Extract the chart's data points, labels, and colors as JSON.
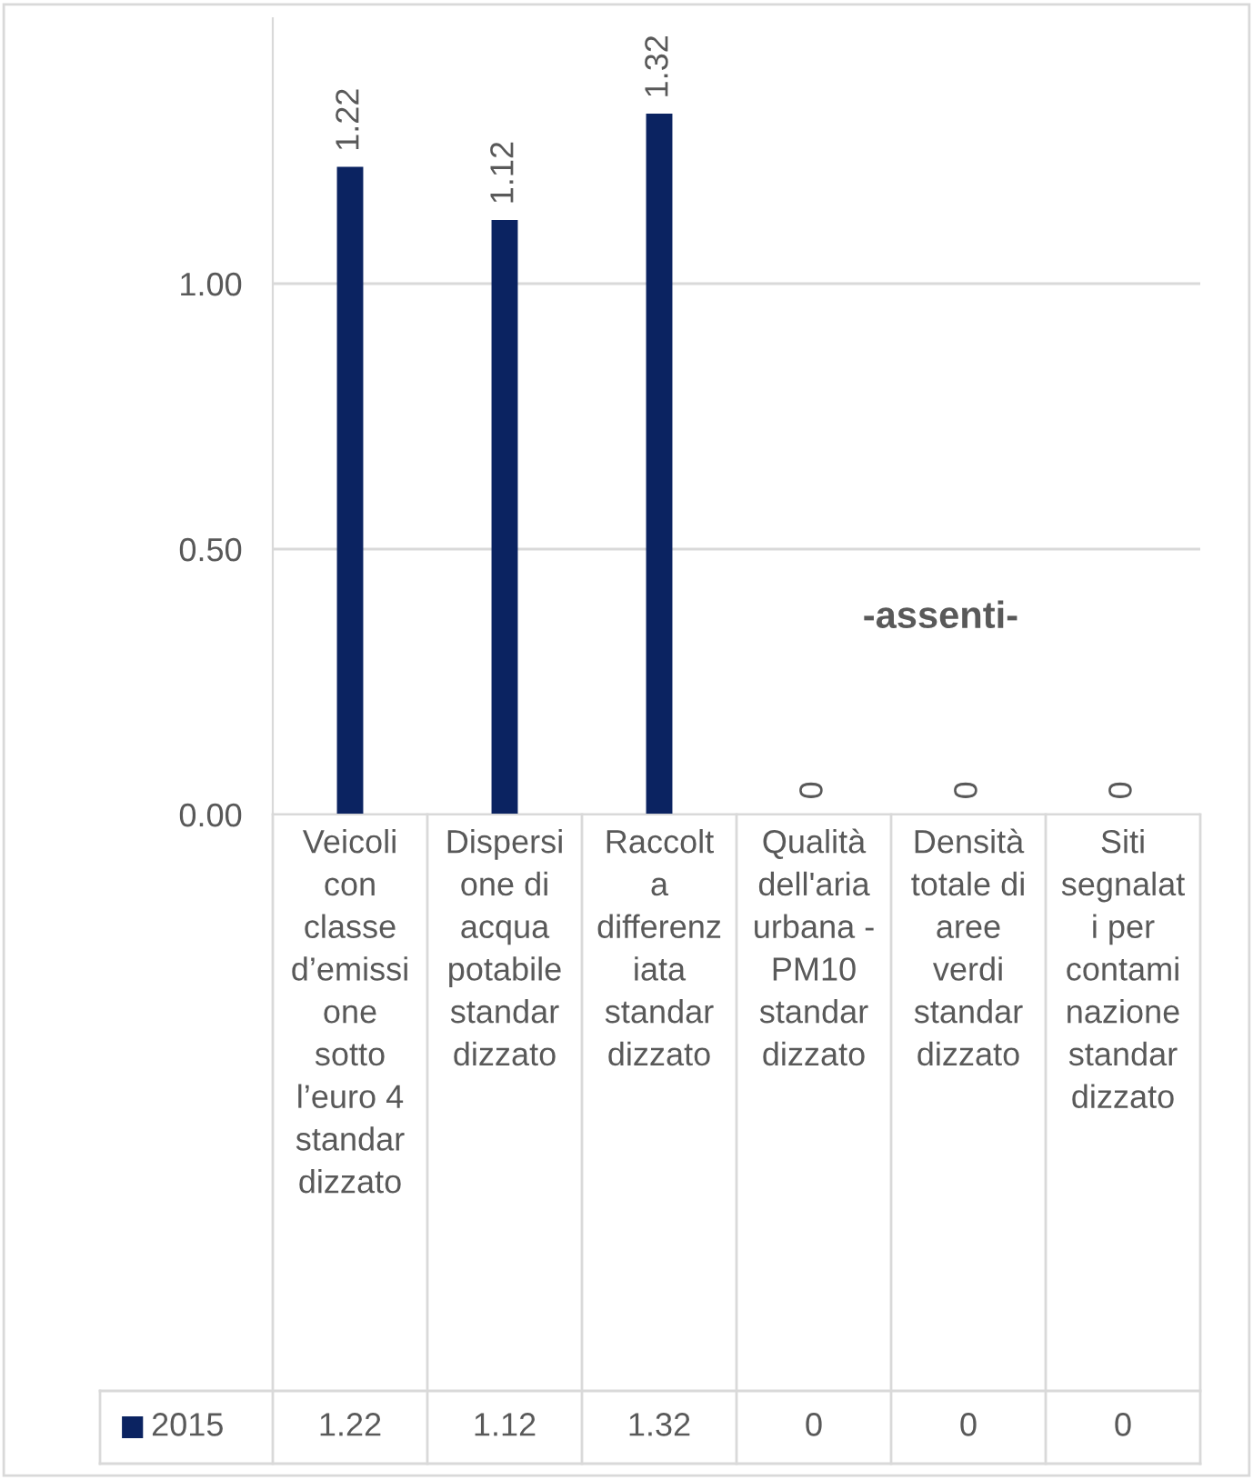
{
  "chart_data": {
    "type": "bar",
    "categories": [
      "Veicoli con classe d’emissione sotto l’euro 4 standardizzato",
      "Dispersione di acqua potabile standardizzato",
      "Raccolta differenziata standardizzato",
      "Qualità dell'aria urbana - PM10 standardizzato",
      "Densità totale di aree verdi standardizzato",
      "Siti segnalati per contaminazione standardizzato"
    ],
    "series": [
      {
        "name": "2015",
        "color": "#0b2361",
        "values": [
          1.22,
          1.12,
          1.32,
          0,
          0,
          0
        ],
        "value_labels": [
          "1.22",
          "1.12",
          "1.32",
          "0",
          "0",
          "0"
        ]
      }
    ],
    "ylim": [
      0,
      1.5
    ],
    "yticks": [
      {
        "value": 0,
        "label": "0.00"
      },
      {
        "value": 0.5,
        "label": "0.50"
      },
      {
        "value": 1.0,
        "label": "1.00"
      }
    ],
    "grid": "y",
    "legend": "bottom",
    "annotations": [
      "-assenti-"
    ]
  }
}
